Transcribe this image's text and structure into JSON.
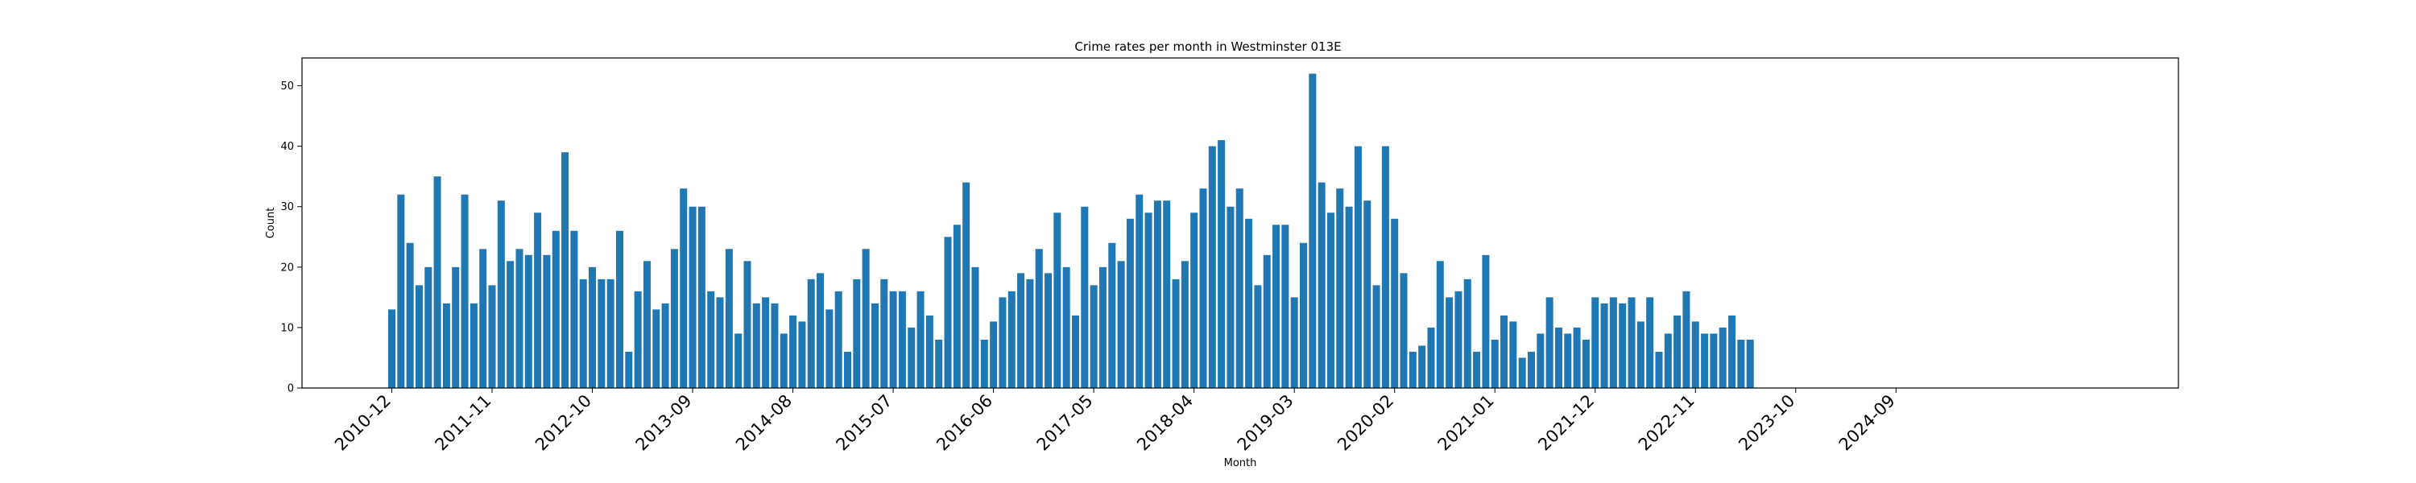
{
  "chart_data": {
    "type": "bar",
    "title": "Crime rates per month in Westminster 013E",
    "xlabel": "Month",
    "ylabel": "Count",
    "ylim": [
      0,
      54.6
    ],
    "yticks": [
      0,
      10,
      20,
      30,
      40,
      50
    ],
    "xticks": [
      "2010-12",
      "2011-11",
      "2012-10",
      "2013-09",
      "2014-08",
      "2015-07",
      "2016-06",
      "2017-05",
      "2018-04",
      "2019-03",
      "2020-02",
      "2021-01",
      "2021-12",
      "2022-11",
      "2023-10",
      "2024-09"
    ],
    "color": "#1f77b4",
    "x": [
      "2010-12",
      "2011-01",
      "2011-02",
      "2011-03",
      "2011-04",
      "2011-05",
      "2011-06",
      "2011-07",
      "2011-08",
      "2011-09",
      "2011-10",
      "2011-11",
      "2011-12",
      "2012-01",
      "2012-02",
      "2012-03",
      "2012-04",
      "2012-05",
      "2012-06",
      "2012-07",
      "2012-08",
      "2012-09",
      "2012-10",
      "2012-11",
      "2012-12",
      "2013-01",
      "2013-02",
      "2013-03",
      "2013-04",
      "2013-05",
      "2013-06",
      "2013-07",
      "2013-08",
      "2013-09",
      "2013-10",
      "2013-11",
      "2013-12",
      "2014-01",
      "2014-02",
      "2014-03",
      "2014-04",
      "2014-05",
      "2014-06",
      "2014-07",
      "2014-08",
      "2014-09",
      "2014-10",
      "2014-11",
      "2014-12",
      "2015-01",
      "2015-02",
      "2015-03",
      "2015-04",
      "2015-05",
      "2015-06",
      "2015-07",
      "2015-08",
      "2015-09",
      "2015-10",
      "2015-11",
      "2015-12",
      "2016-01",
      "2016-02",
      "2016-03",
      "2016-04",
      "2016-05",
      "2016-06",
      "2016-07",
      "2016-08",
      "2016-09",
      "2016-10",
      "2016-11",
      "2016-12",
      "2017-01",
      "2017-02",
      "2017-03",
      "2017-04",
      "2017-05",
      "2017-06",
      "2017-07",
      "2017-08",
      "2017-09",
      "2017-10",
      "2017-11",
      "2017-12",
      "2018-01",
      "2018-02",
      "2018-03",
      "2018-04",
      "2018-05",
      "2018-06",
      "2018-07",
      "2018-08",
      "2018-09",
      "2018-10",
      "2018-11",
      "2018-12",
      "2019-01",
      "2019-02",
      "2019-03",
      "2019-04",
      "2019-05",
      "2019-06",
      "2019-07",
      "2019-08",
      "2019-09",
      "2019-10",
      "2019-11",
      "2019-12",
      "2020-01",
      "2020-02",
      "2020-03",
      "2020-04",
      "2020-05",
      "2020-06",
      "2020-07",
      "2020-08",
      "2020-09",
      "2020-10",
      "2020-11",
      "2020-12",
      "2021-01",
      "2021-02",
      "2021-03",
      "2021-04",
      "2021-05",
      "2021-06",
      "2021-07",
      "2021-08",
      "2021-09",
      "2021-10",
      "2021-11",
      "2021-12",
      "2022-01",
      "2022-02",
      "2022-03",
      "2022-04",
      "2022-05",
      "2022-06",
      "2022-07",
      "2022-08",
      "2022-09",
      "2022-10",
      "2022-11",
      "2022-12",
      "2023-01",
      "2023-02",
      "2023-03",
      "2023-04",
      "2023-05"
    ],
    "values": [
      13,
      32,
      24,
      17,
      20,
      35,
      14,
      20,
      32,
      14,
      23,
      17,
      31,
      21,
      23,
      22,
      29,
      22,
      26,
      39,
      26,
      18,
      20,
      18,
      18,
      26,
      6,
      16,
      21,
      13,
      14,
      23,
      33,
      30,
      30,
      16,
      15,
      23,
      9,
      21,
      14,
      15,
      14,
      9,
      12,
      11,
      18,
      19,
      13,
      16,
      6,
      18,
      23,
      14,
      18,
      16,
      16,
      10,
      16,
      12,
      8,
      25,
      27,
      34,
      20,
      8,
      11,
      15,
      16,
      19,
      18,
      23,
      19,
      29,
      20,
      12,
      30,
      17,
      20,
      24,
      21,
      28,
      32,
      29,
      31,
      31,
      18,
      21,
      29,
      33,
      40,
      41,
      30,
      33,
      28,
      17,
      22,
      27,
      27,
      15,
      24,
      52,
      34,
      29,
      33,
      30,
      40,
      31,
      17,
      40,
      28,
      19,
      6,
      7,
      10,
      21,
      15,
      16,
      18,
      6,
      22,
      8,
      12,
      11,
      5,
      6,
      9,
      15,
      10,
      9,
      10,
      8,
      15,
      14,
      15,
      14,
      15,
      11,
      15,
      6,
      9,
      12,
      16,
      11,
      9,
      9,
      10,
      12,
      8,
      8
    ]
  }
}
